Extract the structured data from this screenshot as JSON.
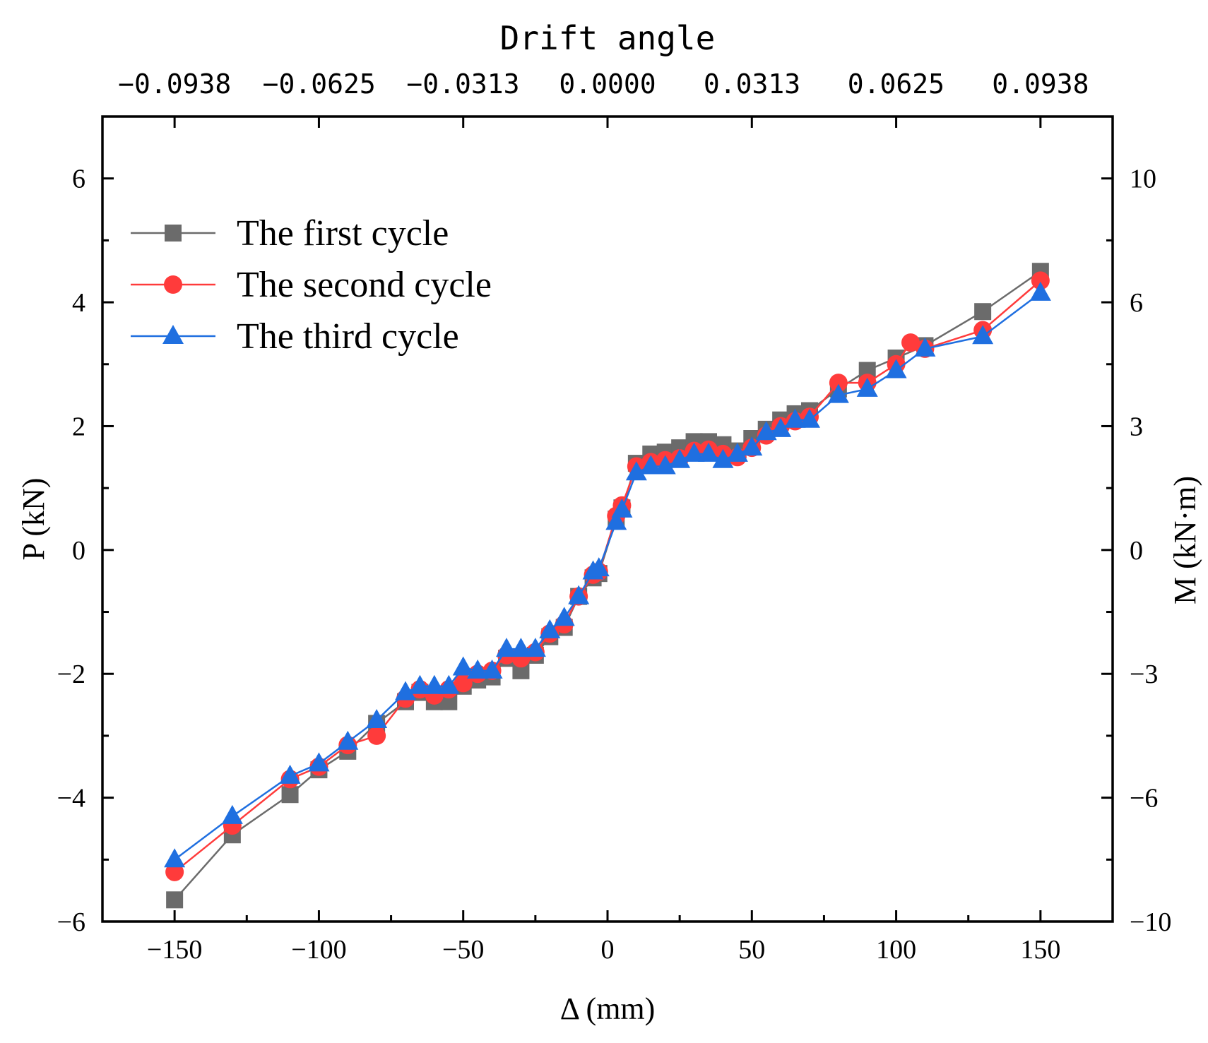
{
  "chart_data": {
    "type": "line",
    "title": "",
    "xlabel": "Δ (mm)",
    "ylabel": "P (kN)",
    "y2label": "M (kN·m)",
    "x2label": "Drift angle",
    "xlim": [
      -175,
      175
    ],
    "ylim": [
      -6,
      7
    ],
    "y2lim": [
      -10,
      11.667
    ],
    "x_ticks": [
      -150,
      -100,
      -50,
      0,
      50,
      100,
      150
    ],
    "x_tick_labels": [
      "−150",
      "−100",
      "−50",
      "0",
      "50",
      "100",
      "150"
    ],
    "y_ticks": [
      -6,
      -4,
      -2,
      0,
      2,
      4,
      6
    ],
    "y_tick_labels": [
      "−6",
      "−4",
      "−2",
      "0",
      "2",
      "4",
      "6"
    ],
    "y2_ticks": [
      -10,
      -6,
      -3,
      0,
      3,
      6,
      10
    ],
    "y2_tick_labels": [
      "−10",
      "−6",
      "−3",
      "0",
      "3",
      "6",
      "10"
    ],
    "x2_ticks": [
      -0.0938,
      -0.0625,
      -0.0313,
      0.0,
      0.0313,
      0.0625,
      0.0938
    ],
    "x2_tick_labels": [
      "−0.0938",
      "−0.0625",
      "−0.0313",
      "0.0000",
      "0.0313",
      "0.0625",
      "0.0938"
    ],
    "legend_position": "top-left",
    "series": [
      {
        "name": "The first cycle",
        "color": "#6b6b6b",
        "marker": "square",
        "x": [
          -150,
          -130,
          -110,
          -100,
          -90,
          -80,
          -70,
          -65,
          -60,
          -55,
          -50,
          -45,
          -40,
          -35,
          -30,
          -25,
          -20,
          -15,
          -10,
          -5,
          -3,
          3,
          5,
          10,
          15,
          20,
          25,
          30,
          35,
          40,
          45,
          50,
          55,
          60,
          65,
          70,
          80,
          90,
          100,
          110,
          130,
          150
        ],
        "y": [
          -5.65,
          -4.6,
          -3.95,
          -3.55,
          -3.25,
          -2.8,
          -2.45,
          -2.3,
          -2.45,
          -2.45,
          -2.2,
          -2.1,
          -2.05,
          -1.75,
          -1.95,
          -1.7,
          -1.4,
          -1.25,
          -0.75,
          -0.45,
          -0.38,
          0.5,
          0.68,
          1.4,
          1.55,
          1.58,
          1.65,
          1.75,
          1.75,
          1.7,
          1.6,
          1.8,
          1.95,
          2.1,
          2.2,
          2.25,
          2.6,
          2.9,
          3.1,
          3.3,
          3.85,
          4.5
        ]
      },
      {
        "name": "The second cycle",
        "color": "#ff3b3b",
        "marker": "circle",
        "x": [
          -150,
          -130,
          -110,
          -100,
          -90,
          -80,
          -70,
          -65,
          -60,
          -55,
          -50,
          -45,
          -40,
          -35,
          -30,
          -25,
          -20,
          -15,
          -10,
          -5,
          -3,
          3,
          5,
          10,
          15,
          20,
          25,
          30,
          35,
          40,
          45,
          50,
          55,
          60,
          65,
          70,
          80,
          90,
          100,
          105,
          110,
          130,
          150
        ],
        "y": [
          -5.2,
          -4.45,
          -3.7,
          -3.5,
          -3.15,
          -3.0,
          -2.4,
          -2.25,
          -2.35,
          -2.25,
          -2.15,
          -2.0,
          -1.95,
          -1.7,
          -1.75,
          -1.65,
          -1.35,
          -1.2,
          -0.75,
          -0.4,
          -0.35,
          0.55,
          0.72,
          1.35,
          1.42,
          1.45,
          1.48,
          1.6,
          1.62,
          1.55,
          1.5,
          1.65,
          1.85,
          2.0,
          2.08,
          2.15,
          2.7,
          2.7,
          3.0,
          3.35,
          3.25,
          3.55,
          4.35
        ]
      },
      {
        "name": "The third cycle",
        "color": "#1f6fe0",
        "marker": "triangle",
        "x": [
          -150,
          -130,
          -110,
          -100,
          -90,
          -80,
          -70,
          -65,
          -60,
          -55,
          -50,
          -45,
          -40,
          -35,
          -30,
          -25,
          -20,
          -15,
          -10,
          -5,
          -3,
          3,
          5,
          10,
          15,
          20,
          25,
          30,
          35,
          40,
          45,
          50,
          55,
          60,
          65,
          70,
          80,
          90,
          100,
          110,
          130,
          150
        ],
        "y": [
          -5.0,
          -4.3,
          -3.65,
          -3.45,
          -3.1,
          -2.75,
          -2.3,
          -2.2,
          -2.2,
          -2.2,
          -1.9,
          -1.95,
          -1.95,
          -1.6,
          -1.6,
          -1.6,
          -1.3,
          -1.1,
          -0.75,
          -0.35,
          -0.3,
          0.45,
          0.65,
          1.25,
          1.35,
          1.35,
          1.45,
          1.55,
          1.55,
          1.45,
          1.55,
          1.65,
          1.9,
          1.95,
          2.1,
          2.1,
          2.5,
          2.6,
          2.9,
          3.25,
          3.45,
          4.15
        ]
      }
    ]
  }
}
